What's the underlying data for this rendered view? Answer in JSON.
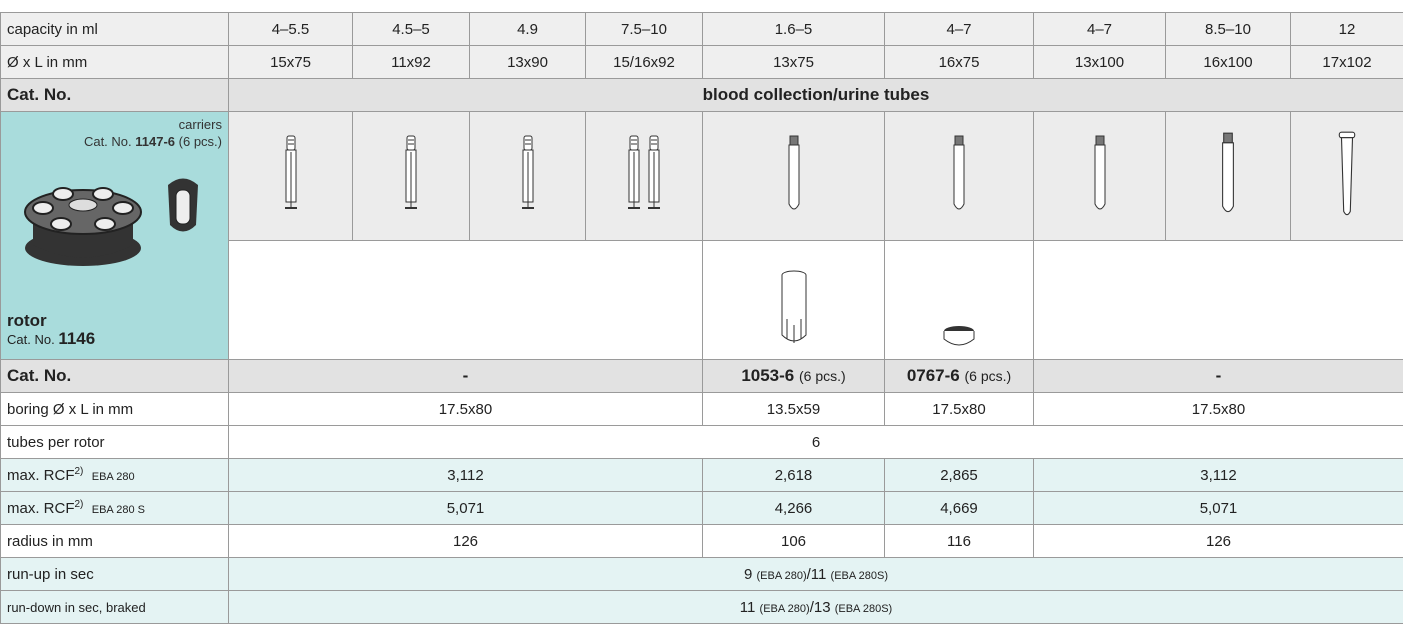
{
  "capacity": {
    "label": "capacity in ml",
    "values": [
      "4–5.5",
      "4.5–5",
      "4.9",
      "7.5–10",
      "1.6–5",
      "4–7",
      "4–7",
      "8.5–10",
      "12"
    ]
  },
  "dimensions": {
    "label": "Ø x L in mm",
    "values": [
      "15x75",
      "11x92",
      "13x90",
      "15/16x92",
      "13x75",
      "16x75",
      "13x100",
      "16x100",
      "17x102"
    ]
  },
  "category": {
    "label": "Cat. No.",
    "value": "blood collection/urine tubes"
  },
  "carriers": {
    "label": "carriers",
    "cat_prefix": "Cat. No.",
    "cat_no": "1147-6",
    "pcs": "(6 pcs.)"
  },
  "rotor": {
    "label": "rotor",
    "cat_prefix": "Cat. No.",
    "cat_no": "1146"
  },
  "adapters": {
    "label": "Cat. No.",
    "cells": [
      "-",
      {
        "cat_no": "1053-6",
        "pcs": "(6 pcs.)"
      },
      {
        "cat_no": "0767-6",
        "pcs": "(6 pcs.)"
      },
      "-"
    ]
  },
  "boring": {
    "label": "boring Ø x L in mm",
    "values": [
      "17.5x80",
      "13.5x59",
      "17.5x80",
      "17.5x80"
    ]
  },
  "tubes_per_rotor": {
    "label": "tubes per rotor",
    "value": "6"
  },
  "rcf_280": {
    "label": "max. RCF",
    "footnote": "2)",
    "model": "EBA 280",
    "values": [
      "3,112",
      "2,618",
      "2,865",
      "3,112"
    ]
  },
  "rcf_280s": {
    "label": "max. RCF",
    "footnote": "2)",
    "model": "EBA 280 S",
    "values": [
      "5,071",
      "4,266",
      "4,669",
      "5,071"
    ]
  },
  "radius": {
    "label": "radius in mm",
    "values": [
      "126",
      "106",
      "116",
      "126"
    ]
  },
  "run_up": {
    "label": "run-up in sec",
    "value_a": "9",
    "model_a": "(EBA 280)",
    "separator": "/",
    "value_b": "11",
    "model_b": "(EBA 280S)"
  },
  "run_down": {
    "label": "run-down in sec, braked",
    "value_a": "11",
    "model_a": "(EBA 280)",
    "separator": "/",
    "value_b": "13",
    "model_b": "(EBA 280S)"
  }
}
